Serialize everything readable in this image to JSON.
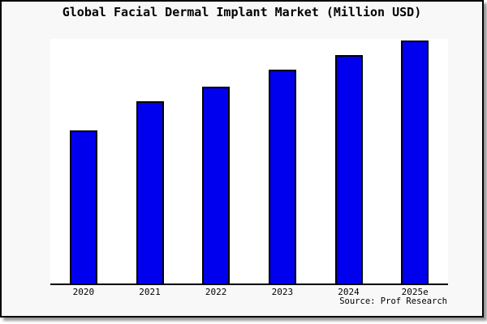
{
  "source_note": "Source: Prof Research",
  "colors": {
    "bar_fill": "#0000EE",
    "bar_border": "#000000",
    "plot_background": "#FFFFFF",
    "frame_background": "#F8F8F8",
    "frame_border": "#000000",
    "shadow": "#9A9A9A",
    "text": "#000000"
  },
  "chart_data": {
    "type": "bar",
    "title": "Global Facial Dermal Implant Market (Million USD)",
    "xlabel": "",
    "ylabel": "",
    "categories": [
      "2020",
      "2021",
      "2022",
      "2023",
      "2024",
      "2025e"
    ],
    "values_pct_of_max": [
      63,
      75,
      81,
      88,
      94,
      100
    ],
    "y_axis_tick_labels_visible": false,
    "value_labels_visible": false,
    "grid": false,
    "legend": false,
    "bar_color": "#0000EE",
    "bar_edge_color": "#000000"
  }
}
